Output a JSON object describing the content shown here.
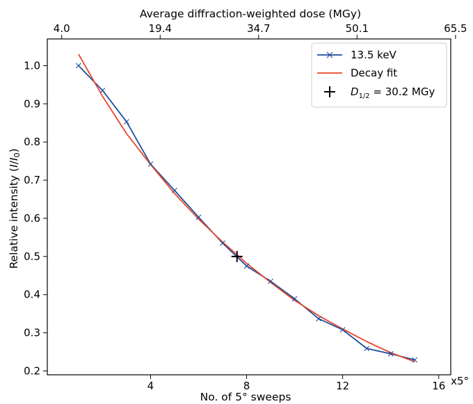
{
  "chart_data": {
    "type": "line",
    "xlabel": "No. of 5° sweeps",
    "x_unit_label": "x5°",
    "ylabel_prefix": "Relative intensity (",
    "ylabel_I": "I",
    "ylabel_sep": "/",
    "ylabel_I0": "I",
    "ylabel_sub0": "0",
    "ylabel_suffix": ")",
    "top_xlabel": "Average diffraction-weighted dose (MGy)",
    "xlim": [
      -0.3,
      16.5
    ],
    "ylim": [
      0.19,
      1.07
    ],
    "x_ticks": [
      4,
      8,
      12,
      16
    ],
    "x_tick_labels": [
      "4",
      "8",
      "12",
      "16"
    ],
    "y_ticks": [
      0.2,
      0.3,
      0.4,
      0.5,
      0.6,
      0.7,
      0.8,
      0.9,
      1.0
    ],
    "y_tick_labels": [
      "0.2",
      "0.3",
      "0.4",
      "0.5",
      "0.6",
      "0.7",
      "0.8",
      "0.9",
      "1.0"
    ],
    "top_ticks_x": [
      0.3,
      4.4,
      8.5,
      12.6,
      16.7
    ],
    "top_tick_labels": [
      "4.0",
      "19.4",
      "34.7",
      "50.1",
      "65.5"
    ],
    "grid": false,
    "legend_position": "top-right",
    "series": [
      {
        "name": "13.5 keV",
        "color": "#1f4e9c",
        "marker": "x",
        "x": [
          1,
          2,
          3,
          4,
          5,
          6,
          7,
          8,
          9,
          10,
          11,
          12,
          13,
          14,
          15
        ],
        "y": [
          1.0,
          0.935,
          0.853,
          0.742,
          0.673,
          0.603,
          0.535,
          0.475,
          0.435,
          0.389,
          0.337,
          0.308,
          0.259,
          0.245,
          0.229
        ]
      },
      {
        "name": "Decay fit",
        "color": "#e8452a",
        "marker": "none",
        "x": [
          1,
          2,
          3,
          4,
          5,
          6,
          7,
          8,
          9,
          10,
          11,
          12,
          13,
          14,
          15
        ],
        "y": [
          1.03,
          0.92,
          0.822,
          0.741,
          0.665,
          0.598,
          0.538,
          0.482,
          0.432,
          0.385,
          0.345,
          0.31,
          0.277,
          0.248,
          0.224
        ]
      }
    ],
    "marker_point": {
      "label_D": "D",
      "label_sub": "1/2",
      "label_value": " = 30.2 MGy",
      "x": 7.6,
      "y": 0.5,
      "color": "#000000"
    }
  }
}
